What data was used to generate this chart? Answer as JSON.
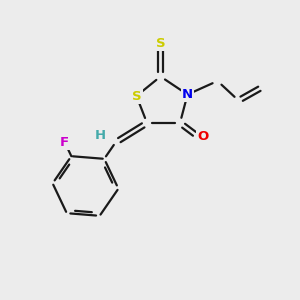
{
  "bg_color": "#ececec",
  "bond_color": "#1a1a1a",
  "bond_width": 1.6,
  "atom_colors": {
    "S": "#cccc00",
    "N": "#0000ee",
    "O": "#ee0000",
    "F": "#cc00cc",
    "H": "#44aaaa",
    "C": "#1a1a1a"
  },
  "font_size": 9.5,
  "fig_size": [
    3.0,
    3.0
  ],
  "dpi": 100,
  "xlim": [
    0,
    10
  ],
  "ylim": [
    0,
    10
  ]
}
